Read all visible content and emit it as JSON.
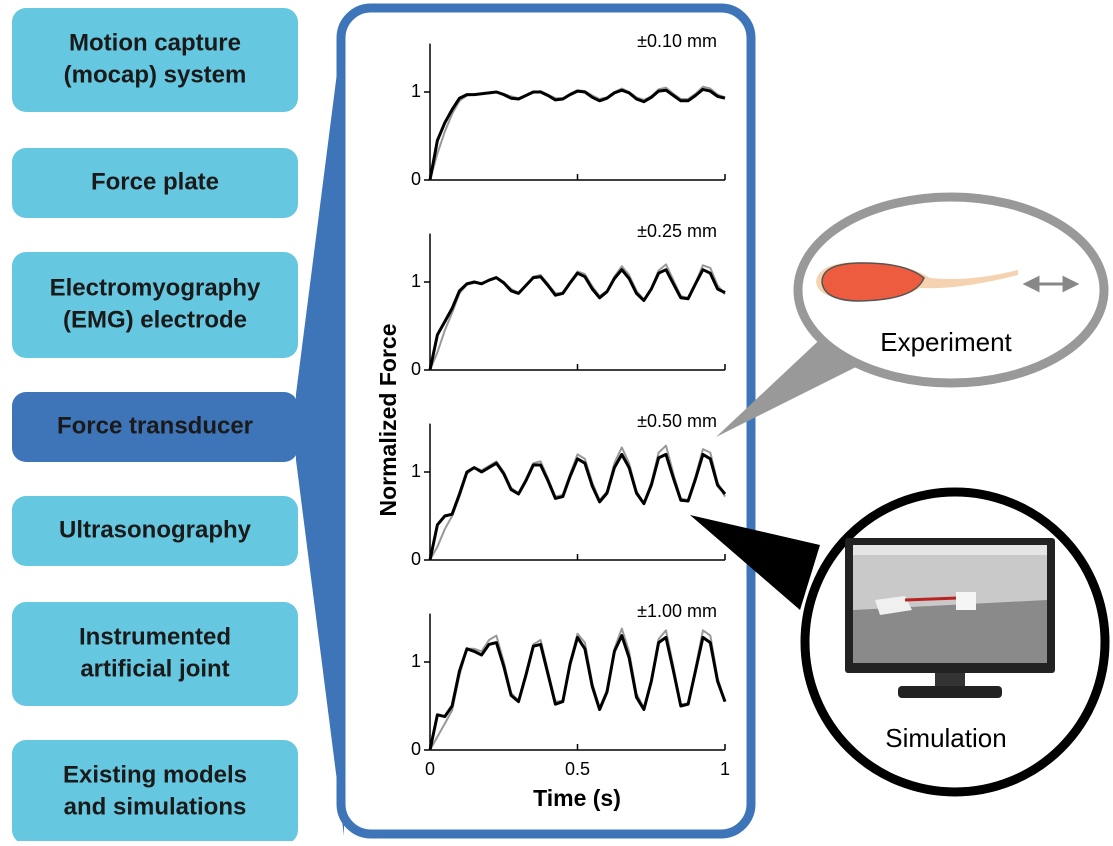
{
  "sources": [
    {
      "lines": [
        "Motion capture",
        "(mocap) system"
      ]
    },
    {
      "lines": [
        "Force plate"
      ]
    },
    {
      "lines": [
        "Electromyography",
        "(EMG) electrode"
      ]
    },
    {
      "lines": [
        "Force transducer"
      ]
    },
    {
      "lines": [
        "Ultrasonography"
      ]
    },
    {
      "lines": [
        "Instrumented",
        "artificial joint"
      ]
    },
    {
      "lines": [
        "Existing models",
        "and simulations"
      ]
    }
  ],
  "experiment_label": "Experiment",
  "simulation_label": "Simulation",
  "chart_data": [
    {
      "type": "line",
      "title": "±0.10 mm",
      "ylabel": "Normalized Force",
      "x": [
        0,
        0.025,
        0.05,
        0.075,
        0.1,
        0.125,
        0.15,
        0.175,
        0.2,
        0.225,
        0.25,
        0.275,
        0.3,
        0.325,
        0.35,
        0.375,
        0.4,
        0.425,
        0.45,
        0.475,
        0.5,
        0.525,
        0.55,
        0.575,
        0.6,
        0.625,
        0.65,
        0.675,
        0.7,
        0.725,
        0.75,
        0.775,
        0.8,
        0.825,
        0.85,
        0.875,
        0.9,
        0.925,
        0.95,
        0.975,
        1
      ],
      "series": [
        {
          "color": "#999999",
          "values": [
            0,
            0.3,
            0.55,
            0.75,
            0.9,
            0.96,
            0.97,
            0.98,
            0.99,
            1.0,
            0.98,
            0.95,
            0.93,
            0.96,
            1.0,
            1.01,
            0.97,
            0.93,
            0.93,
            0.98,
            1.02,
            1.01,
            0.96,
            0.92,
            0.94,
            1.0,
            1.04,
            1.0,
            0.94,
            0.91,
            0.95,
            1.03,
            1.05,
            0.98,
            0.92,
            0.92,
            0.98,
            1.06,
            1.04,
            0.97,
            0.94
          ]
        },
        {
          "color": "#000000",
          "values": [
            0,
            0.45,
            0.65,
            0.8,
            0.93,
            0.97,
            0.97,
            0.98,
            0.99,
            1.0,
            0.97,
            0.93,
            0.92,
            0.96,
            1.0,
            1.0,
            0.96,
            0.91,
            0.92,
            0.97,
            1.01,
            1.0,
            0.94,
            0.9,
            0.93,
            0.99,
            1.02,
            0.99,
            0.92,
            0.89,
            0.94,
            1.01,
            1.02,
            0.96,
            0.9,
            0.9,
            0.96,
            1.03,
            1.01,
            0.95,
            0.93
          ]
        }
      ],
      "xlim": [
        0,
        1
      ],
      "ylim": [
        0,
        1.55
      ],
      "yticks": [
        0,
        1
      ]
    },
    {
      "type": "line",
      "title": "±0.25 mm",
      "x": [
        0,
        0.025,
        0.05,
        0.075,
        0.1,
        0.125,
        0.15,
        0.175,
        0.2,
        0.225,
        0.25,
        0.275,
        0.3,
        0.325,
        0.35,
        0.375,
        0.4,
        0.425,
        0.45,
        0.475,
        0.5,
        0.525,
        0.55,
        0.575,
        0.6,
        0.625,
        0.65,
        0.675,
        0.7,
        0.725,
        0.75,
        0.775,
        0.8,
        0.825,
        0.85,
        0.875,
        0.9,
        0.925,
        0.95,
        0.975,
        1
      ],
      "series": [
        {
          "color": "#999999",
          "values": [
            0,
            0.2,
            0.45,
            0.65,
            0.87,
            0.97,
            0.99,
            0.99,
            1.02,
            1.05,
            1.0,
            0.92,
            0.88,
            0.96,
            1.06,
            1.08,
            0.98,
            0.87,
            0.88,
            1.0,
            1.12,
            1.09,
            0.95,
            0.84,
            0.9,
            1.06,
            1.18,
            1.08,
            0.9,
            0.8,
            0.93,
            1.13,
            1.2,
            1.02,
            0.84,
            0.82,
            0.99,
            1.19,
            1.16,
            0.96,
            0.86
          ]
        },
        {
          "color": "#000000",
          "values": [
            0,
            0.4,
            0.55,
            0.7,
            0.9,
            0.98,
            1.0,
            0.98,
            1.02,
            1.05,
            0.99,
            0.9,
            0.87,
            0.96,
            1.05,
            1.06,
            0.96,
            0.85,
            0.87,
            0.99,
            1.1,
            1.06,
            0.92,
            0.82,
            0.89,
            1.04,
            1.14,
            1.04,
            0.87,
            0.79,
            0.92,
            1.1,
            1.14,
            0.98,
            0.82,
            0.81,
            0.98,
            1.14,
            1.1,
            0.92,
            0.88
          ]
        }
      ],
      "xlim": [
        0,
        1
      ],
      "ylim": [
        0,
        1.55
      ],
      "yticks": [
        0,
        1
      ]
    },
    {
      "type": "line",
      "title": "±0.50 mm",
      "x": [
        0,
        0.025,
        0.05,
        0.075,
        0.1,
        0.125,
        0.15,
        0.175,
        0.2,
        0.225,
        0.25,
        0.275,
        0.3,
        0.325,
        0.35,
        0.375,
        0.4,
        0.425,
        0.45,
        0.475,
        0.5,
        0.525,
        0.55,
        0.575,
        0.6,
        0.625,
        0.65,
        0.675,
        0.7,
        0.725,
        0.75,
        0.775,
        0.8,
        0.825,
        0.85,
        0.875,
        0.9,
        0.925,
        0.95,
        0.975,
        1
      ],
      "series": [
        {
          "color": "#999999",
          "values": [
            0,
            0.15,
            0.35,
            0.5,
            0.72,
            0.98,
            1.05,
            1.02,
            1.07,
            1.12,
            1.0,
            0.82,
            0.76,
            0.92,
            1.1,
            1.12,
            0.93,
            0.72,
            0.74,
            0.98,
            1.2,
            1.15,
            0.88,
            0.68,
            0.78,
            1.1,
            1.28,
            1.1,
            0.78,
            0.65,
            0.88,
            1.22,
            1.3,
            0.98,
            0.7,
            0.68,
            0.95,
            1.26,
            1.22,
            0.88,
            0.72
          ]
        },
        {
          "color": "#000000",
          "values": [
            0,
            0.4,
            0.5,
            0.52,
            0.75,
            1.0,
            1.05,
            1.0,
            1.05,
            1.1,
            0.98,
            0.8,
            0.75,
            0.9,
            1.08,
            1.08,
            0.9,
            0.7,
            0.72,
            0.95,
            1.15,
            1.1,
            0.84,
            0.66,
            0.76,
            1.05,
            1.2,
            1.05,
            0.76,
            0.64,
            0.85,
            1.16,
            1.2,
            0.93,
            0.68,
            0.67,
            0.92,
            1.2,
            1.15,
            0.85,
            0.75
          ]
        }
      ],
      "xlim": [
        0,
        1
      ],
      "ylim": [
        0,
        1.55
      ],
      "yticks": [
        0,
        1
      ]
    },
    {
      "type": "line",
      "title": "±1.00 mm",
      "xlabel": "Time (s)",
      "x": [
        0,
        0.025,
        0.05,
        0.075,
        0.1,
        0.125,
        0.15,
        0.175,
        0.2,
        0.225,
        0.25,
        0.275,
        0.3,
        0.325,
        0.35,
        0.375,
        0.4,
        0.425,
        0.45,
        0.475,
        0.5,
        0.525,
        0.55,
        0.575,
        0.6,
        0.625,
        0.65,
        0.675,
        0.7,
        0.725,
        0.75,
        0.775,
        0.8,
        0.825,
        0.85,
        0.875,
        0.9,
        0.925,
        0.95,
        0.975,
        1
      ],
      "series": [
        {
          "color": "#999999",
          "values": [
            0,
            0.15,
            0.3,
            0.45,
            0.85,
            1.15,
            1.15,
            1.12,
            1.25,
            1.3,
            1.0,
            0.65,
            0.56,
            0.87,
            1.2,
            1.25,
            0.9,
            0.55,
            0.56,
            1.0,
            1.32,
            1.22,
            0.76,
            0.48,
            0.68,
            1.15,
            1.38,
            1.12,
            0.64,
            0.48,
            0.8,
            1.26,
            1.36,
            0.95,
            0.52,
            0.53,
            0.93,
            1.36,
            1.3,
            0.82,
            0.55
          ]
        },
        {
          "color": "#000000",
          "values": [
            0,
            0.4,
            0.38,
            0.5,
            0.9,
            1.15,
            1.12,
            1.08,
            1.2,
            1.22,
            0.95,
            0.62,
            0.55,
            0.85,
            1.18,
            1.2,
            0.86,
            0.52,
            0.55,
            0.98,
            1.28,
            1.15,
            0.72,
            0.46,
            0.66,
            1.12,
            1.3,
            1.05,
            0.6,
            0.46,
            0.78,
            1.22,
            1.28,
            0.9,
            0.5,
            0.52,
            0.9,
            1.28,
            1.22,
            0.78,
            0.55
          ]
        }
      ],
      "xlim": [
        0,
        1
      ],
      "ylim": [
        0,
        1.55
      ],
      "yticks": [
        0,
        1
      ],
      "xticks": [
        0,
        0.5,
        1
      ]
    }
  ]
}
